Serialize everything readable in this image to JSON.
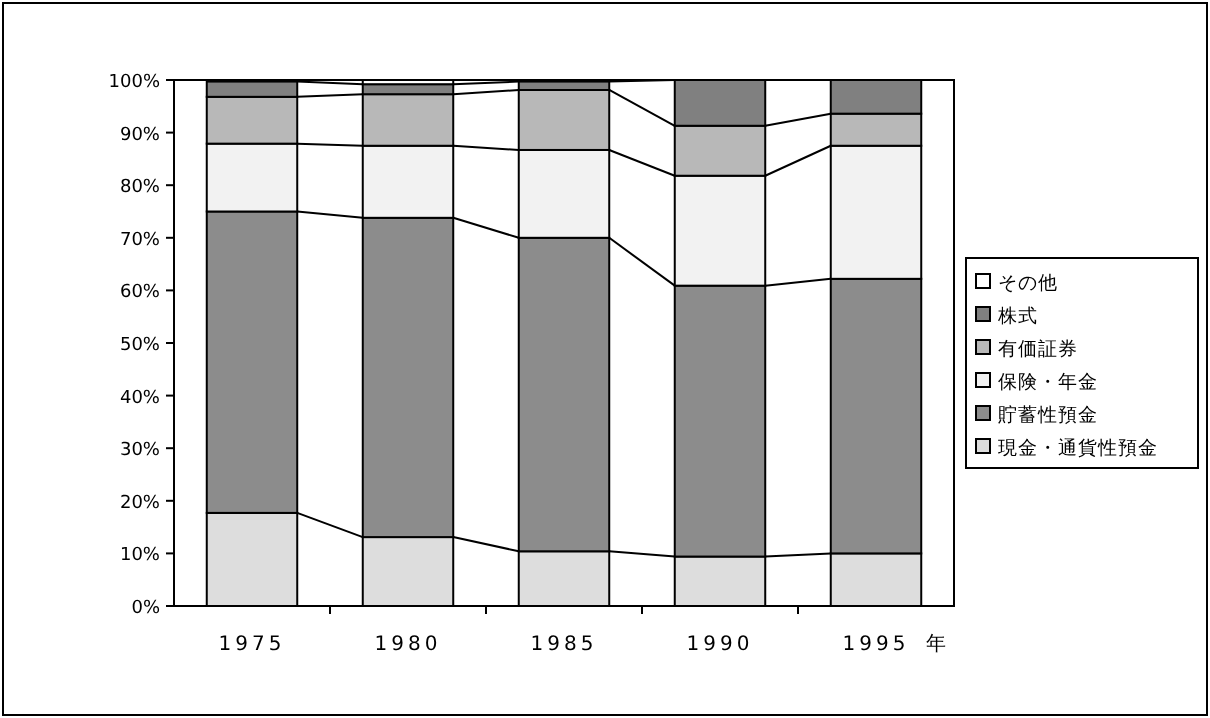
{
  "chart_data": {
    "type": "bar",
    "stacked": true,
    "xlabel": "年",
    "categories": [
      "1975",
      "1980",
      "1985",
      "1990",
      "1995"
    ],
    "series": [
      {
        "name": "現金・通貨性預金",
        "color": "#dddddd",
        "values": [
          17.7,
          13.1,
          10.4,
          9.4,
          10.0
        ]
      },
      {
        "name": "貯蓄性預金",
        "color": "#8c8c8c",
        "values": [
          57.3,
          60.7,
          59.6,
          51.5,
          52.2
        ]
      },
      {
        "name": "保険・年金",
        "color": "#f2f2f2",
        "values": [
          12.9,
          13.7,
          16.7,
          20.9,
          25.3
        ]
      },
      {
        "name": "有価証券",
        "color": "#b8b8b8",
        "values": [
          8.9,
          9.8,
          11.4,
          9.5,
          6.1
        ]
      },
      {
        "name": "株式",
        "color": "#808080",
        "values": [
          2.9,
          1.9,
          1.6,
          8.7,
          6.4
        ]
      },
      {
        "name": "その他",
        "color": "#ffffff",
        "values": [
          null,
          0.8,
          null,
          0,
          0
        ]
      }
    ],
    "ylim": [
      0,
      100
    ],
    "yticks": [
      {
        "value": 0,
        "label": "0%"
      },
      {
        "value": 10,
        "label": "10%"
      },
      {
        "value": 20,
        "label": "20%"
      },
      {
        "value": 30,
        "label": "30%"
      },
      {
        "value": 40,
        "label": "40%"
      },
      {
        "value": 50,
        "label": "50%"
      },
      {
        "value": 60,
        "label": "60%"
      },
      {
        "value": 70,
        "label": "70%"
      },
      {
        "value": 80,
        "label": "80%"
      },
      {
        "value": 90,
        "label": "90%"
      },
      {
        "value": 100,
        "label": "100%"
      }
    ],
    "legend": "right",
    "grid": false
  }
}
